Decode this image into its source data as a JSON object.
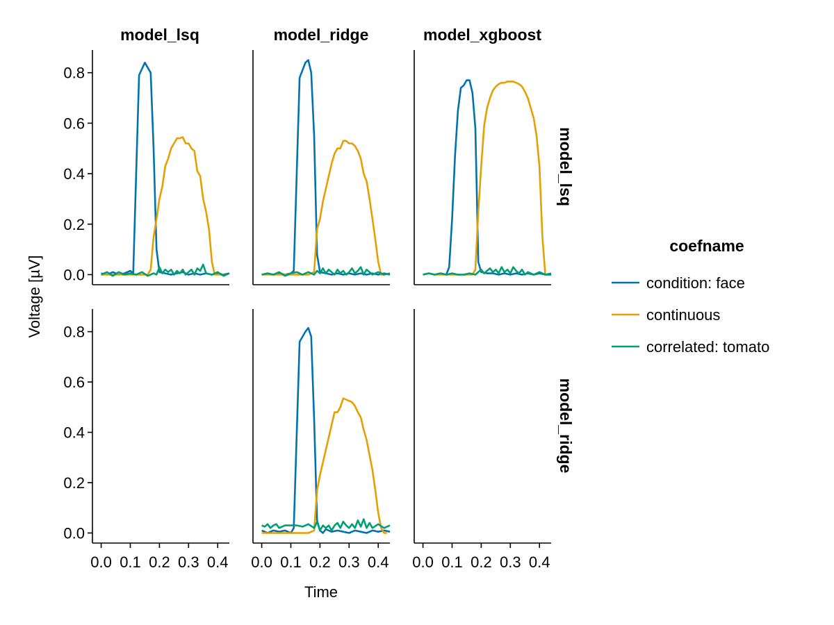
{
  "chart_data": {
    "type": "line",
    "xlabel": "Time",
    "ylabel": "Voltage [µV]",
    "xlim": [
      -0.03,
      0.44
    ],
    "ylim": [
      -0.04,
      0.89
    ],
    "xticks": [
      0.0,
      0.1,
      0.2,
      0.3,
      0.4
    ],
    "xtick_labels": [
      "0.0",
      "0.1",
      "0.2",
      "0.3",
      "0.4"
    ],
    "yticks": [
      0.0,
      0.2,
      0.4,
      0.6,
      0.8
    ],
    "ytick_labels": [
      "0.0",
      "0.2",
      "0.4",
      "0.6",
      "0.8"
    ],
    "columns": [
      "model_lsq",
      "model_ridge",
      "model_xgboost"
    ],
    "rows": [
      "model_lsq",
      "model_ridge"
    ],
    "legend": {
      "title": "coefname",
      "entries": [
        {
          "name": "condition: face",
          "color": "#0072b2"
        },
        {
          "name": "continuous",
          "color": "#e69f00"
        },
        {
          "name": "correlated: tomato",
          "color": "#009e73"
        }
      ]
    },
    "panels": [
      {
        "row": 0,
        "col": 0,
        "title": "model_lsq / model_lsq",
        "series": [
          {
            "name": "condition: face",
            "x": [
              0.0,
              0.02,
              0.04,
              0.06,
              0.08,
              0.1,
              0.11,
              0.13,
              0.15,
              0.17,
              0.18,
              0.19,
              0.2,
              0.22,
              0.24,
              0.26,
              0.28,
              0.3,
              0.32,
              0.34,
              0.36,
              0.38,
              0.4,
              0.42,
              0.44
            ],
            "y": [
              0.005,
              0.0,
              0.01,
              0.0,
              0.005,
              0.015,
              0.005,
              0.79,
              0.84,
              0.8,
              0.5,
              0.1,
              0.01,
              0.005,
              0.0,
              0.005,
              0.01,
              0.0,
              0.005,
              0.0,
              0.005,
              0.0,
              0.005,
              0.0,
              0.005
            ]
          },
          {
            "name": "continuous",
            "x": [
              0.0,
              0.02,
              0.04,
              0.06,
              0.08,
              0.1,
              0.12,
              0.14,
              0.16,
              0.17,
              0.18,
              0.19,
              0.2,
              0.21,
              0.22,
              0.23,
              0.24,
              0.25,
              0.26,
              0.27,
              0.28,
              0.29,
              0.3,
              0.31,
              0.32,
              0.33,
              0.34,
              0.35,
              0.36,
              0.37,
              0.38,
              0.39,
              0.4,
              0.41,
              0.42
            ],
            "y": [
              0.0,
              0.0,
              0.0,
              0.0,
              0.0,
              0.0,
              0.0,
              0.0,
              0.0,
              0.02,
              0.15,
              0.22,
              0.3,
              0.35,
              0.43,
              0.46,
              0.5,
              0.52,
              0.54,
              0.54,
              0.545,
              0.52,
              0.52,
              0.5,
              0.49,
              0.41,
              0.39,
              0.3,
              0.25,
              0.18,
              0.05,
              0.0,
              0.0,
              0.0,
              0.0
            ]
          },
          {
            "name": "correlated: tomato",
            "x": [
              0.0,
              0.02,
              0.04,
              0.06,
              0.08,
              0.1,
              0.12,
              0.14,
              0.16,
              0.18,
              0.19,
              0.2,
              0.21,
              0.22,
              0.23,
              0.24,
              0.25,
              0.26,
              0.27,
              0.28,
              0.29,
              0.3,
              0.31,
              0.32,
              0.33,
              0.34,
              0.35,
              0.36,
              0.38,
              0.4,
              0.42,
              0.44
            ],
            "y": [
              0.0,
              0.01,
              -0.005,
              0.01,
              0.0,
              0.005,
              0.0,
              0.01,
              -0.005,
              0.005,
              0.0,
              0.03,
              0.005,
              0.02,
              0.01,
              0.02,
              0.0,
              0.015,
              0.005,
              0.02,
              0.0,
              0.01,
              0.02,
              0.0,
              0.025,
              0.015,
              0.04,
              0.005,
              0.0,
              0.01,
              -0.005,
              0.005
            ]
          }
        ]
      },
      {
        "row": 0,
        "col": 1,
        "title": "model_ridge / model_lsq",
        "series": [
          {
            "name": "condition: face",
            "x": [
              0.0,
              0.02,
              0.04,
              0.06,
              0.08,
              0.1,
              0.11,
              0.13,
              0.15,
              0.16,
              0.17,
              0.18,
              0.19,
              0.2,
              0.22,
              0.24,
              0.26,
              0.28,
              0.3,
              0.32,
              0.34,
              0.36,
              0.38,
              0.4,
              0.42,
              0.44
            ],
            "y": [
              0.0,
              0.005,
              0.0,
              0.005,
              0.0,
              0.005,
              0.015,
              0.78,
              0.84,
              0.85,
              0.8,
              0.55,
              0.08,
              0.01,
              0.005,
              0.0,
              0.005,
              0.0,
              0.005,
              0.0,
              0.005,
              0.0,
              0.005,
              0.0,
              0.005,
              0.0
            ]
          },
          {
            "name": "continuous",
            "x": [
              0.0,
              0.04,
              0.08,
              0.12,
              0.16,
              0.18,
              0.19,
              0.2,
              0.21,
              0.22,
              0.23,
              0.24,
              0.25,
              0.26,
              0.27,
              0.28,
              0.29,
              0.3,
              0.31,
              0.32,
              0.33,
              0.34,
              0.35,
              0.36,
              0.37,
              0.38,
              0.39,
              0.4,
              0.41,
              0.42
            ],
            "y": [
              0.0,
              0.0,
              0.0,
              0.0,
              0.0,
              0.01,
              0.18,
              0.22,
              0.29,
              0.34,
              0.39,
              0.44,
              0.48,
              0.5,
              0.5,
              0.53,
              0.53,
              0.52,
              0.52,
              0.51,
              0.49,
              0.46,
              0.4,
              0.37,
              0.3,
              0.22,
              0.14,
              0.05,
              0.0,
              0.0
            ]
          },
          {
            "name": "correlated: tomato",
            "x": [
              0.0,
              0.02,
              0.04,
              0.06,
              0.08,
              0.1,
              0.12,
              0.14,
              0.16,
              0.18,
              0.19,
              0.2,
              0.21,
              0.22,
              0.23,
              0.24,
              0.25,
              0.26,
              0.27,
              0.28,
              0.29,
              0.3,
              0.31,
              0.32,
              0.33,
              0.34,
              0.35,
              0.36,
              0.38,
              0.4,
              0.42,
              0.44
            ],
            "y": [
              0.0,
              0.005,
              0.0,
              0.01,
              -0.005,
              0.005,
              0.01,
              0.0,
              0.01,
              0.0,
              0.015,
              0.005,
              0.025,
              0.005,
              0.02,
              0.01,
              0.0,
              0.02,
              0.005,
              0.015,
              0.0,
              0.01,
              0.025,
              0.005,
              0.015,
              0.03,
              0.0,
              0.02,
              0.0,
              0.01,
              0.0,
              0.005
            ]
          }
        ]
      },
      {
        "row": 0,
        "col": 2,
        "title": "model_xgboost / model_lsq",
        "series": [
          {
            "name": "condition: face",
            "x": [
              0.0,
              0.02,
              0.04,
              0.06,
              0.08,
              0.09,
              0.1,
              0.11,
              0.12,
              0.13,
              0.14,
              0.15,
              0.16,
              0.17,
              0.18,
              0.19,
              0.2,
              0.22,
              0.24,
              0.26,
              0.28,
              0.3,
              0.32,
              0.34,
              0.36,
              0.38,
              0.4,
              0.42,
              0.44
            ],
            "y": [
              0.0,
              0.005,
              0.0,
              0.005,
              0.0,
              0.03,
              0.22,
              0.47,
              0.65,
              0.74,
              0.75,
              0.77,
              0.77,
              0.72,
              0.58,
              0.05,
              0.01,
              0.005,
              0.005,
              0.0,
              0.005,
              0.0,
              0.005,
              0.0,
              0.005,
              0.0,
              0.005,
              0.0,
              0.0
            ]
          },
          {
            "name": "continuous",
            "x": [
              0.0,
              0.02,
              0.04,
              0.06,
              0.08,
              0.1,
              0.12,
              0.14,
              0.16,
              0.17,
              0.18,
              0.19,
              0.2,
              0.21,
              0.22,
              0.23,
              0.24,
              0.25,
              0.26,
              0.27,
              0.28,
              0.29,
              0.3,
              0.31,
              0.32,
              0.33,
              0.34,
              0.35,
              0.36,
              0.37,
              0.38,
              0.39,
              0.4,
              0.41,
              0.42
            ],
            "y": [
              0.0,
              0.005,
              0.0,
              0.0,
              0.0,
              0.0,
              0.0,
              0.0,
              0.0,
              0.0,
              0.02,
              0.25,
              0.43,
              0.59,
              0.66,
              0.7,
              0.73,
              0.745,
              0.755,
              0.76,
              0.76,
              0.765,
              0.765,
              0.765,
              0.76,
              0.755,
              0.745,
              0.725,
              0.7,
              0.66,
              0.62,
              0.55,
              0.43,
              0.15,
              0.0
            ]
          },
          {
            "name": "correlated: tomato",
            "x": [
              0.0,
              0.02,
              0.04,
              0.06,
              0.08,
              0.1,
              0.12,
              0.14,
              0.16,
              0.18,
              0.19,
              0.2,
              0.21,
              0.22,
              0.23,
              0.24,
              0.25,
              0.26,
              0.27,
              0.28,
              0.29,
              0.3,
              0.31,
              0.32,
              0.33,
              0.34,
              0.35,
              0.36,
              0.38,
              0.4,
              0.42,
              0.44
            ],
            "y": [
              0.0,
              0.005,
              0.0,
              0.005,
              0.0,
              0.005,
              0.0,
              0.0,
              0.005,
              0.0,
              0.01,
              0.02,
              0.005,
              0.015,
              0.025,
              0.01,
              0.02,
              0.005,
              0.03,
              0.01,
              0.02,
              0.005,
              0.03,
              0.015,
              0.005,
              0.02,
              0.0,
              0.01,
              0.0,
              0.01,
              0.0,
              0.005
            ]
          }
        ]
      },
      {
        "row": 1,
        "col": 0,
        "title": "model_lsq / model_ridge",
        "series": []
      },
      {
        "row": 1,
        "col": 1,
        "title": "model_ridge / model_ridge",
        "series": [
          {
            "name": "condition: face",
            "x": [
              0.0,
              0.02,
              0.04,
              0.06,
              0.08,
              0.1,
              0.11,
              0.13,
              0.15,
              0.16,
              0.17,
              0.18,
              0.19,
              0.2,
              0.21,
              0.22,
              0.24,
              0.26,
              0.28,
              0.3,
              0.32,
              0.34,
              0.36,
              0.38,
              0.4,
              0.42,
              0.44
            ],
            "y": [
              0.01,
              0.0,
              0.01,
              0.005,
              0.01,
              0.0,
              0.02,
              0.76,
              0.8,
              0.815,
              0.78,
              0.45,
              0.05,
              0.01,
              0.0,
              0.015,
              0.005,
              0.01,
              0.005,
              0.0,
              0.01,
              0.005,
              0.0,
              0.01,
              0.005,
              0.01,
              0.005
            ]
          },
          {
            "name": "continuous",
            "x": [
              0.0,
              0.04,
              0.08,
              0.12,
              0.16,
              0.18,
              0.19,
              0.2,
              0.21,
              0.22,
              0.23,
              0.24,
              0.25,
              0.26,
              0.27,
              0.28,
              0.29,
              0.3,
              0.31,
              0.32,
              0.33,
              0.34,
              0.35,
              0.36,
              0.37,
              0.38,
              0.39,
              0.4,
              0.41,
              0.42,
              0.43
            ],
            "y": [
              0.0,
              0.0,
              0.0,
              0.0,
              0.0,
              0.01,
              0.17,
              0.23,
              0.28,
              0.33,
              0.38,
              0.43,
              0.48,
              0.48,
              0.5,
              0.535,
              0.53,
              0.525,
              0.52,
              0.505,
              0.48,
              0.46,
              0.41,
              0.37,
              0.31,
              0.25,
              0.17,
              0.08,
              0.02,
              0.0,
              0.0
            ]
          },
          {
            "name": "correlated: tomato",
            "x": [
              0.0,
              0.01,
              0.02,
              0.03,
              0.04,
              0.05,
              0.06,
              0.08,
              0.1,
              0.12,
              0.14,
              0.16,
              0.18,
              0.19,
              0.2,
              0.21,
              0.22,
              0.23,
              0.24,
              0.25,
              0.26,
              0.27,
              0.28,
              0.29,
              0.3,
              0.31,
              0.32,
              0.33,
              0.34,
              0.35,
              0.36,
              0.37,
              0.38,
              0.4,
              0.42,
              0.44
            ],
            "y": [
              0.03,
              0.025,
              0.035,
              0.02,
              0.03,
              0.035,
              0.02,
              0.03,
              0.03,
              0.03,
              0.025,
              0.035,
              0.02,
              0.045,
              0.01,
              0.03,
              0.02,
              0.03,
              0.01,
              0.03,
              0.04,
              0.02,
              0.045,
              0.03,
              0.02,
              0.035,
              0.02,
              0.05,
              0.025,
              0.055,
              0.02,
              0.04,
              0.02,
              0.035,
              0.02,
              0.03
            ]
          }
        ]
      },
      {
        "row": 1,
        "col": 2,
        "title": "model_xgboost / model_ridge",
        "series": []
      }
    ]
  }
}
